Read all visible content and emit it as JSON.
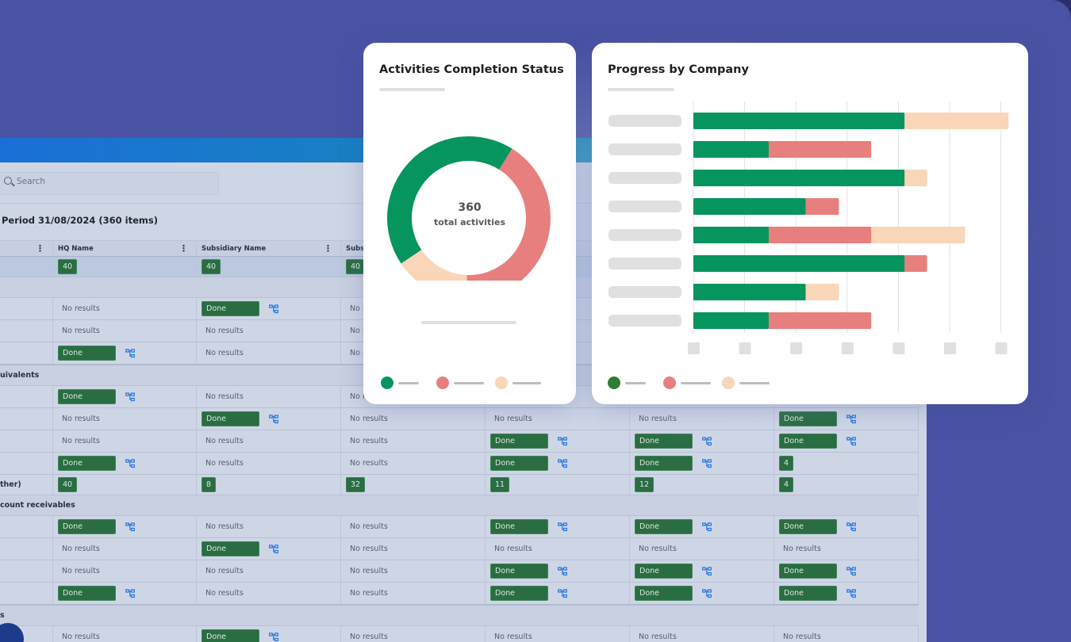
{
  "colors": {
    "background": "#4a52a4",
    "completed": "#07955f",
    "overdue": "#e77f7f",
    "pending": "#f8d6b7",
    "badge": "#2a6d42",
    "link": "#2f7be0"
  },
  "table": {
    "search_placeholder": "Search",
    "search_icon": "search-icon",
    "title": "Period 31/08/2024 (360 items)",
    "columns": [
      "",
      "HQ Name",
      "Subsidiary Name",
      "Subs",
      "",
      "",
      ""
    ],
    "rows": [
      {
        "type": "totals",
        "label": "",
        "cells": [
          "40",
          "40",
          "40",
          "",
          "",
          ""
        ]
      },
      {
        "type": "group",
        "label": ""
      },
      {
        "type": "data",
        "cells": [
          "No results",
          "Done",
          "No results",
          "",
          "",
          ""
        ]
      },
      {
        "type": "data",
        "cells": [
          "No results",
          "No results",
          "No results",
          "",
          "",
          ""
        ]
      },
      {
        "type": "data",
        "cells": [
          "Done",
          "No results",
          "No results",
          "",
          "",
          ""
        ]
      },
      {
        "type": "group",
        "label": "uivalents"
      },
      {
        "type": "data",
        "cells": [
          "Done",
          "No results",
          "No results",
          "",
          "",
          ""
        ]
      },
      {
        "type": "data",
        "cells": [
          "No results",
          "Done",
          "No results",
          "No results",
          "No results",
          "Done"
        ]
      },
      {
        "type": "data",
        "cells": [
          "No results",
          "No results",
          "No results",
          "Done",
          "Done",
          "Done"
        ]
      },
      {
        "type": "data",
        "cells": [
          "Done",
          "No results",
          "No results",
          "Done",
          "Done",
          "#4"
        ]
      },
      {
        "type": "totals",
        "label": "ther)",
        "cells": [
          "40",
          "8",
          "32",
          "11",
          "12",
          "4"
        ]
      },
      {
        "type": "group",
        "label": "count receivables"
      },
      {
        "type": "data",
        "cells": [
          "Done",
          "No results",
          "No results",
          "Done",
          "Done",
          "Done"
        ]
      },
      {
        "type": "data",
        "cells": [
          "No results",
          "Done",
          "No results",
          "No results",
          "No results",
          "No results"
        ]
      },
      {
        "type": "data",
        "cells": [
          "No results",
          "No results",
          "No results",
          "Done",
          "Done",
          "Done"
        ]
      },
      {
        "type": "data",
        "cells": [
          "Done",
          "No results",
          "No results",
          "Done",
          "Done",
          "Done"
        ]
      },
      {
        "type": "group",
        "label": "s"
      },
      {
        "type": "data",
        "cells": [
          "No results",
          "Done",
          "No results",
          "No results",
          "No results",
          "No results"
        ]
      }
    ]
  },
  "donut_card": {
    "title": "Activities Completion Status",
    "total": "360",
    "total_label": "total activities"
  },
  "bar_card": {
    "title": "Progress by Company"
  },
  "chart_data": [
    {
      "type": "pie",
      "variant": "donut",
      "title": "Activities Completion Status",
      "center_text": [
        "360",
        "total activities"
      ],
      "values": [
        156,
        150,
        54
      ],
      "colors": [
        "#07955f",
        "#e77f7f",
        "#f8d6b7"
      ],
      "legend": "bottom"
    },
    {
      "type": "bar",
      "orientation": "horizontal",
      "stacked": true,
      "title": "Progress by Company",
      "xlim": [
        0,
        6
      ],
      "grid": true,
      "legend": "bottom-left",
      "series": [
        {
          "color": "#07955f",
          "values": [
            4.12,
            1.47,
            4.12,
            2.19,
            1.47,
            4.12,
            2.19,
            1.47
          ]
        },
        {
          "color": "#e77f7f",
          "values": [
            0,
            2.0,
            0,
            0.65,
            2.0,
            0.44,
            0,
            2.0
          ]
        },
        {
          "color": "#f8d6b7",
          "values": [
            2.03,
            0,
            0.44,
            0,
            1.83,
            0,
            0.65,
            0
          ]
        }
      ]
    }
  ]
}
